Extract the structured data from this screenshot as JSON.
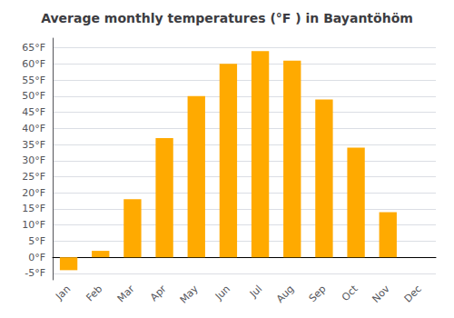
{
  "chart_data": {
    "type": "bar",
    "title": "Average monthly temperatures (°F ) in Bayantöhöm",
    "categories": [
      "Jan",
      "Feb",
      "Mar",
      "Apr",
      "May",
      "Jun",
      "Jul",
      "Aug",
      "Sep",
      "Oct",
      "Nov",
      "Dec"
    ],
    "values": [
      -4,
      2,
      18,
      37,
      50,
      60,
      64,
      61,
      49,
      34,
      14,
      0
    ],
    "color": "#FFAA00",
    "ylim": [
      -7,
      68
    ],
    "yticks": [
      {
        "value": -5,
        "label": "-5°F"
      },
      {
        "value": 0,
        "label": "0°F"
      },
      {
        "value": 5,
        "label": "5°F"
      },
      {
        "value": 10,
        "label": "10°F"
      },
      {
        "value": 15,
        "label": "15°F"
      },
      {
        "value": 20,
        "label": "20°F"
      },
      {
        "value": 25,
        "label": "25°F"
      },
      {
        "value": 30,
        "label": "30°F"
      },
      {
        "value": 35,
        "label": "35°F"
      },
      {
        "value": 40,
        "label": "40°F"
      },
      {
        "value": 45,
        "label": "45°F"
      },
      {
        "value": 50,
        "label": "50°F"
      },
      {
        "value": 55,
        "label": "55°F"
      },
      {
        "value": 60,
        "label": "60°F"
      },
      {
        "value": 65,
        "label": "65°F"
      }
    ],
    "grid": true
  }
}
